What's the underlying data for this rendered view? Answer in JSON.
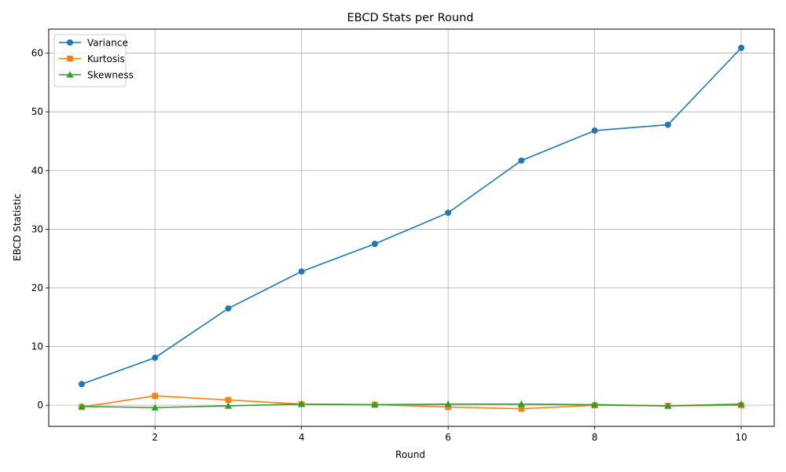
{
  "chart_data": {
    "type": "line",
    "title": "EBCD Stats per Round",
    "xlabel": "Round",
    "ylabel": "EBCD Statistic",
    "x": [
      1,
      2,
      3,
      4,
      5,
      6,
      7,
      8,
      9,
      10
    ],
    "xlim": [
      0.55,
      10.45
    ],
    "ylim": [
      -3.6,
      64.1
    ],
    "xticks": [
      2,
      4,
      6,
      8,
      10
    ],
    "yticks": [
      0,
      10,
      20,
      30,
      40,
      50,
      60
    ],
    "grid": true,
    "legend_position": "top-left",
    "series": [
      {
        "name": "Variance",
        "color": "#1f77b4",
        "marker": "circle",
        "values": [
          3.6,
          8.1,
          16.5,
          22.8,
          27.5,
          32.8,
          41.7,
          46.8,
          47.8,
          60.9
        ]
      },
      {
        "name": "Kurtosis",
        "color": "#ff7f0e",
        "marker": "square",
        "values": [
          -0.3,
          1.6,
          0.9,
          0.2,
          0.1,
          -0.3,
          -0.6,
          0.0,
          -0.1,
          0.0
        ]
      },
      {
        "name": "Skewness",
        "color": "#2ca02c",
        "marker": "triangle",
        "values": [
          -0.2,
          -0.4,
          -0.1,
          0.2,
          0.1,
          0.2,
          0.2,
          0.1,
          -0.1,
          0.2
        ]
      }
    ]
  }
}
